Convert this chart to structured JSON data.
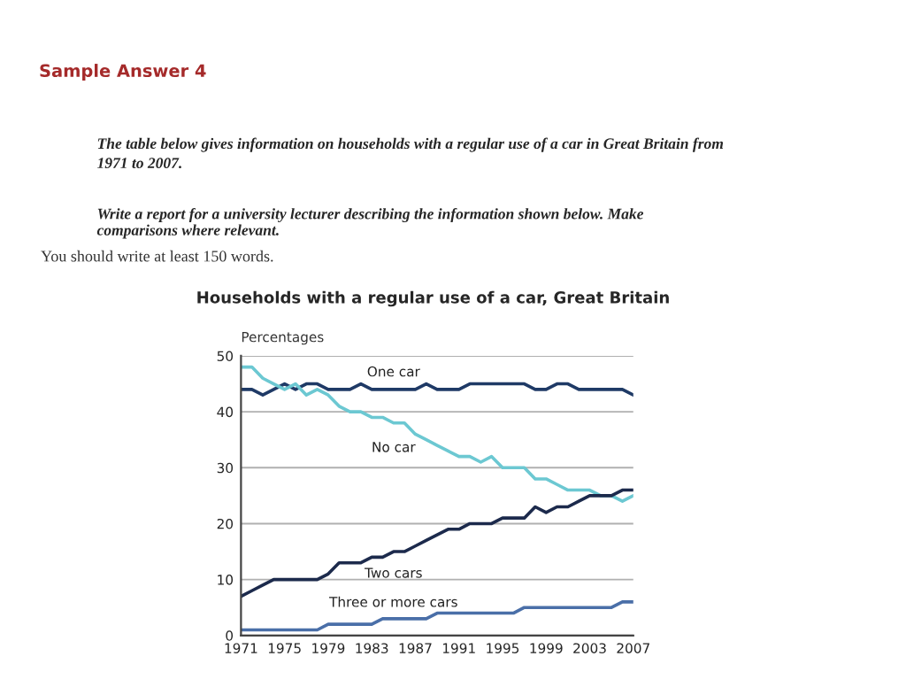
{
  "chart_data": {
    "type": "line",
    "title": "Households with a regular use of a car, Great Britain",
    "ylabel": "Percentages",
    "annotations": [
      "Sample Answer 4",
      "The table below gives information on households with a regular use of a car in Great Britain from\n1971 to 2007.",
      "Write a report for a university lecturer describing the information shown below. Make\ncomparisons where relevant.",
      "You should write at least 150 words."
    ],
    "x": [
      1971,
      1972,
      1973,
      1974,
      1975,
      1976,
      1977,
      1978,
      1979,
      1980,
      1981,
      1982,
      1983,
      1984,
      1985,
      1986,
      1987,
      1988,
      1989,
      1990,
      1991,
      1992,
      1993,
      1994,
      1995,
      1996,
      1997,
      1998,
      1999,
      2000,
      2001,
      2002,
      2003,
      2004,
      2005,
      2006,
      2007
    ],
    "series": [
      {
        "name": "One car",
        "color": "#1f3a66",
        "values": [
          44,
          44,
          43,
          44,
          45,
          44,
          45,
          45,
          44,
          44,
          44,
          45,
          44,
          44,
          44,
          44,
          44,
          45,
          44,
          44,
          44,
          45,
          45,
          45,
          45,
          45,
          45,
          44,
          44,
          45,
          45,
          44,
          44,
          44,
          44,
          44,
          43
        ]
      },
      {
        "name": "No car",
        "color": "#6cc8d2",
        "values": [
          48,
          48,
          46,
          45,
          44,
          45,
          43,
          44,
          43,
          41,
          40,
          40,
          39,
          39,
          38,
          38,
          36,
          35,
          34,
          33,
          32,
          32,
          31,
          32,
          30,
          30,
          30,
          28,
          28,
          27,
          26,
          26,
          26,
          25,
          25,
          24,
          25
        ]
      },
      {
        "name": "Two cars",
        "color": "#1c2a4c",
        "values": [
          7,
          8,
          9,
          10,
          10,
          10,
          10,
          10,
          11,
          13,
          13,
          13,
          14,
          14,
          15,
          15,
          16,
          17,
          18,
          19,
          19,
          20,
          20,
          20,
          21,
          21,
          21,
          23,
          22,
          23,
          23,
          24,
          25,
          25,
          25,
          26,
          26
        ]
      },
      {
        "name": "Three or more cars",
        "color": "#4a6fa8",
        "values": [
          1,
          1,
          1,
          1,
          1,
          1,
          1,
          1,
          2,
          2,
          2,
          2,
          2,
          3,
          3,
          3,
          3,
          3,
          4,
          4,
          4,
          4,
          4,
          4,
          4,
          4,
          5,
          5,
          5,
          5,
          5,
          5,
          5,
          5,
          5,
          6,
          6
        ]
      }
    ],
    "xlim": [
      1971,
      2007
    ],
    "xticks": [
      1971,
      1975,
      1979,
      1983,
      1987,
      1991,
      1995,
      1999,
      2003,
      2007
    ],
    "ylim": [
      0,
      50
    ],
    "yticks": [
      0,
      10,
      20,
      30,
      40,
      50
    ],
    "grid": "y",
    "legend": false,
    "marker": "none",
    "line_style": "solid"
  }
}
